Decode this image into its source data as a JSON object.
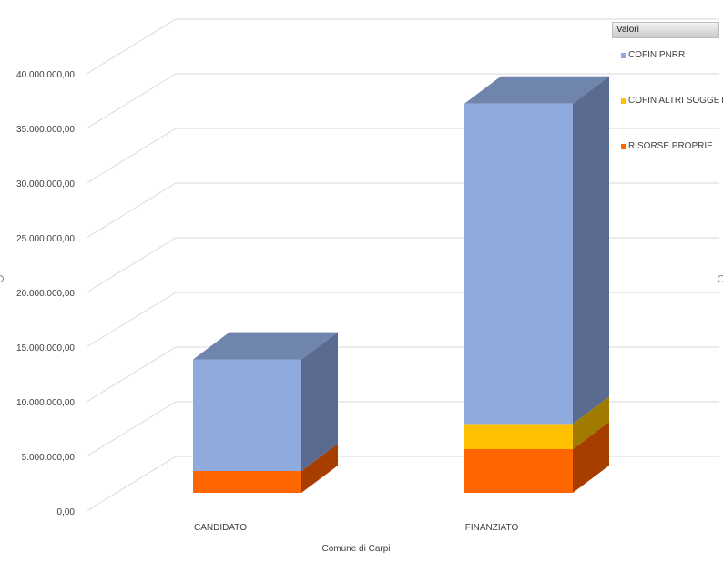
{
  "chart_data": {
    "type": "bar",
    "stacked": true,
    "three_d": true,
    "categories": [
      "CANDIDATO",
      "FINANZIATO"
    ],
    "series": [
      {
        "name": "RISORSE PROPRIE",
        "values": [
          2000000,
          4000000
        ],
        "color": "#ff6600",
        "side_color": "#a83d00"
      },
      {
        "name": "COFIN ALTRI SOGGETTI",
        "values": [
          0,
          2300000
        ],
        "color": "#ffc000",
        "side_color": "#a07b00"
      },
      {
        "name": "COFIN PNRR",
        "values": [
          10200000,
          29300000
        ],
        "color": "#8faadc",
        "side_color": "#5a6b8f"
      }
    ],
    "y_ticks": [
      "0,00",
      "5.000.000,00",
      "10.000.000,00",
      "15.000.000,00",
      "20.000.000,00",
      "25.000.000,00",
      "30.000.000,00",
      "35.000.000,00",
      "40.000.000,00"
    ],
    "ylim": [
      0,
      40000000
    ],
    "xlabel": "Comune di Carpi",
    "legend_title": "Valori",
    "legend_placement": "right",
    "grid": true
  }
}
